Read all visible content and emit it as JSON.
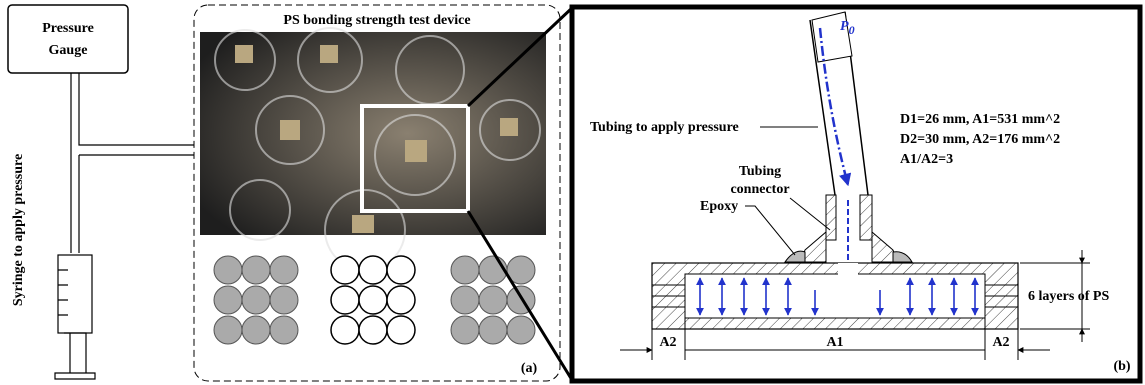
{
  "gauge": {
    "label_line1": "Pressure",
    "label_line2": "Gauge"
  },
  "syringe_label": "Syringe to apply pressure",
  "panel_a": {
    "title": "PS bonding strength test device",
    "tag": "(a)"
  },
  "panel_b": {
    "pressure_symbol": "P",
    "pressure_subscript": "0",
    "tubing_label": "Tubing to apply pressure",
    "specs": [
      "D1=26 mm, A1=531 mm^2",
      "D2=30 mm, A2=176 mm^2",
      "A1/A2=3"
    ],
    "connector_line1": "Tubing",
    "connector_line2": "connector",
    "epoxy_label": "Epoxy",
    "layers_label": "6 layers of PS",
    "dim_left": "A2",
    "dim_center": "A1",
    "dim_right": "A2",
    "tag": "(b)"
  }
}
